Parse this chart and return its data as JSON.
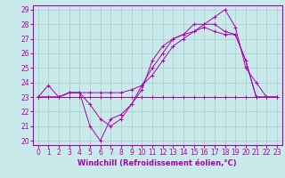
{
  "xlabel": "Windchill (Refroidissement éolien,°C)",
  "bg_color": "#c8eaea",
  "grid_color": "#aacccc",
  "line_color": "#aa00aa",
  "xlim": [
    -0.5,
    23.5
  ],
  "ylim": [
    19.7,
    29.3
  ],
  "yticks": [
    20,
    21,
    22,
    23,
    24,
    25,
    26,
    27,
    28,
    29
  ],
  "xticks": [
    0,
    1,
    2,
    3,
    4,
    5,
    6,
    7,
    8,
    9,
    10,
    11,
    12,
    13,
    14,
    15,
    16,
    17,
    18,
    19,
    20,
    21,
    22,
    23
  ],
  "series": [
    [
      23.0,
      23.8,
      23.0,
      23.3,
      23.3,
      21.0,
      20.0,
      21.5,
      21.8,
      22.5,
      23.8,
      25.0,
      26.0,
      27.0,
      27.3,
      28.0,
      28.0,
      28.5,
      29.0,
      27.8,
      25.0,
      24.0,
      23.0,
      23.0
    ],
    [
      23.0,
      23.0,
      23.0,
      23.3,
      23.3,
      22.5,
      21.5,
      21.0,
      21.5,
      22.5,
      23.5,
      25.5,
      26.5,
      27.0,
      27.3,
      27.5,
      27.8,
      27.5,
      27.3,
      27.3,
      25.5,
      23.0,
      23.0,
      23.0
    ],
    [
      23.0,
      23.0,
      23.0,
      23.0,
      23.0,
      23.0,
      23.0,
      23.0,
      23.0,
      23.0,
      23.0,
      23.0,
      23.0,
      23.0,
      23.0,
      23.0,
      23.0,
      23.0,
      23.0,
      23.0,
      23.0,
      23.0,
      23.0,
      23.0
    ],
    [
      23.0,
      23.0,
      23.0,
      23.3,
      23.3,
      23.3,
      23.3,
      23.3,
      23.3,
      23.5,
      23.8,
      24.5,
      25.5,
      26.5,
      27.0,
      27.5,
      28.0,
      28.0,
      27.5,
      27.3,
      25.5,
      23.0,
      23.0,
      23.0
    ]
  ],
  "xlabel_fontsize": 6,
  "tick_fontsize": 5.5
}
